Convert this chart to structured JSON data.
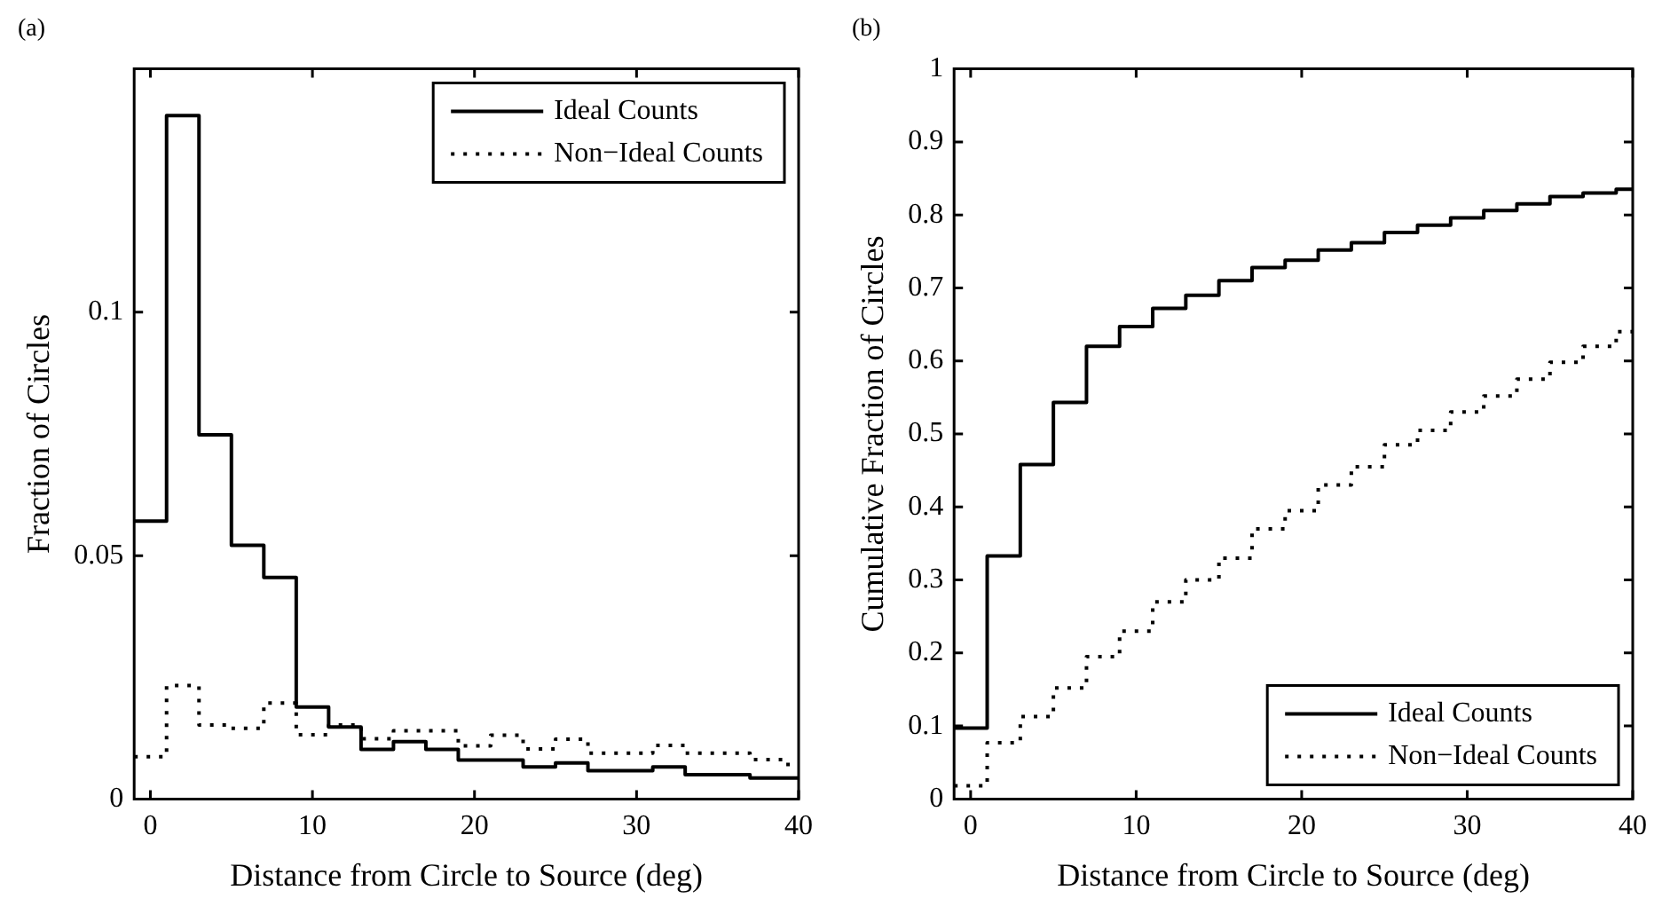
{
  "chart_data": [
    {
      "type": "step",
      "title": "(a)",
      "xlabel": "Distance from Circle to Source (deg)",
      "ylabel": "Fraction of Circles",
      "x": [
        -1,
        1,
        3,
        5,
        7,
        9,
        11,
        13,
        15,
        17,
        19,
        21,
        23,
        25,
        27,
        29,
        31,
        33,
        35,
        37,
        39,
        40
      ],
      "xlim": [
        -1,
        40
      ],
      "xticks": [
        0,
        10,
        20,
        30,
        40
      ],
      "ylim": [
        0,
        0.15
      ],
      "yticks": [
        0,
        0.05,
        0.1
      ],
      "legend": "top right",
      "series": [
        {
          "name": "Ideal Counts",
          "color": "#000000",
          "line_style": "solid",
          "values": [
            0.0571,
            0.1404,
            0.0748,
            0.0521,
            0.0455,
            0.0189,
            0.0148,
            0.0102,
            0.0118,
            0.0102,
            0.008,
            0.008,
            0.0066,
            0.0074,
            0.0058,
            0.0058,
            0.0066,
            0.005,
            0.005,
            0.0043,
            0.0043,
            0.0043
          ]
        },
        {
          "name": "Non−Ideal Counts",
          "color": "#000000",
          "line_style": "dotted",
          "values": [
            0.0087,
            0.0233,
            0.0152,
            0.0145,
            0.0197,
            0.0132,
            0.0152,
            0.0124,
            0.014,
            0.014,
            0.0109,
            0.0131,
            0.0103,
            0.0123,
            0.0094,
            0.0094,
            0.011,
            0.0094,
            0.0094,
            0.0081,
            0.0071,
            0.0071
          ]
        }
      ]
    },
    {
      "type": "step",
      "title": "(b)",
      "xlabel": "Distance from Circle to Source (deg)",
      "ylabel": "Cumulative Fraction of Circles",
      "x": [
        -1,
        1,
        3,
        5,
        7,
        9,
        11,
        13,
        15,
        17,
        19,
        21,
        23,
        25,
        27,
        29,
        31,
        33,
        35,
        37,
        39,
        40
      ],
      "xlim": [
        -1,
        40
      ],
      "xticks": [
        0,
        10,
        20,
        30,
        40
      ],
      "ylim": [
        0,
        1
      ],
      "yticks": [
        0,
        0.1,
        0.2,
        0.3,
        0.4,
        0.5,
        0.6,
        0.7,
        0.8,
        0.9,
        1
      ],
      "legend": "bottom right",
      "series": [
        {
          "name": "Ideal Counts",
          "color": "#000000",
          "line_style": "solid",
          "values": [
            0.097,
            0.333,
            0.458,
            0.543,
            0.62,
            0.647,
            0.672,
            0.69,
            0.71,
            0.728,
            0.738,
            0.752,
            0.762,
            0.776,
            0.786,
            0.796,
            0.806,
            0.815,
            0.825,
            0.83,
            0.835,
            0.835
          ]
        },
        {
          "name": "Non−Ideal Counts",
          "color": "#000000",
          "line_style": "dotted",
          "values": [
            0.018,
            0.077,
            0.113,
            0.152,
            0.195,
            0.23,
            0.27,
            0.3,
            0.33,
            0.37,
            0.395,
            0.43,
            0.455,
            0.485,
            0.505,
            0.53,
            0.552,
            0.575,
            0.598,
            0.62,
            0.64,
            0.64
          ]
        }
      ]
    }
  ]
}
